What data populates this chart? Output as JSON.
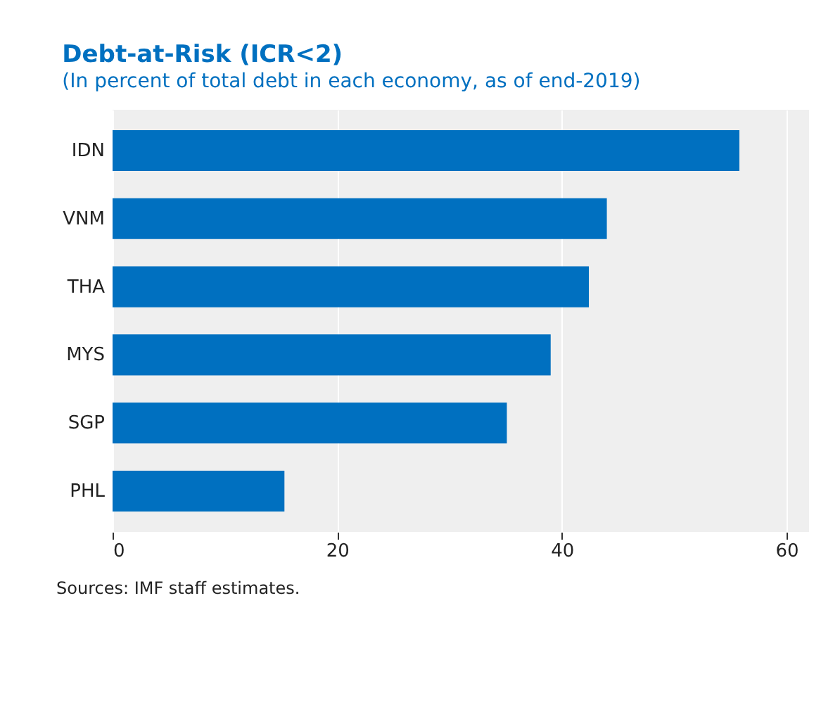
{
  "chart_data": {
    "type": "bar",
    "orientation": "horizontal",
    "title": "Debt-at-Risk (ICR<2)",
    "subtitle": "(In percent of total debt in each economy, as of end-2019)",
    "categories": [
      "IDN",
      "VNM",
      "THA",
      "MYS",
      "SGP",
      "PHL"
    ],
    "values": [
      55.8,
      44.0,
      42.4,
      39.0,
      35.1,
      15.3
    ],
    "color": "#0070c0",
    "xlim": [
      0,
      62
    ],
    "xticks": [
      0,
      20,
      40,
      60
    ],
    "grid": "x",
    "annotations": [
      "Sources: IMF staff estimates."
    ]
  }
}
